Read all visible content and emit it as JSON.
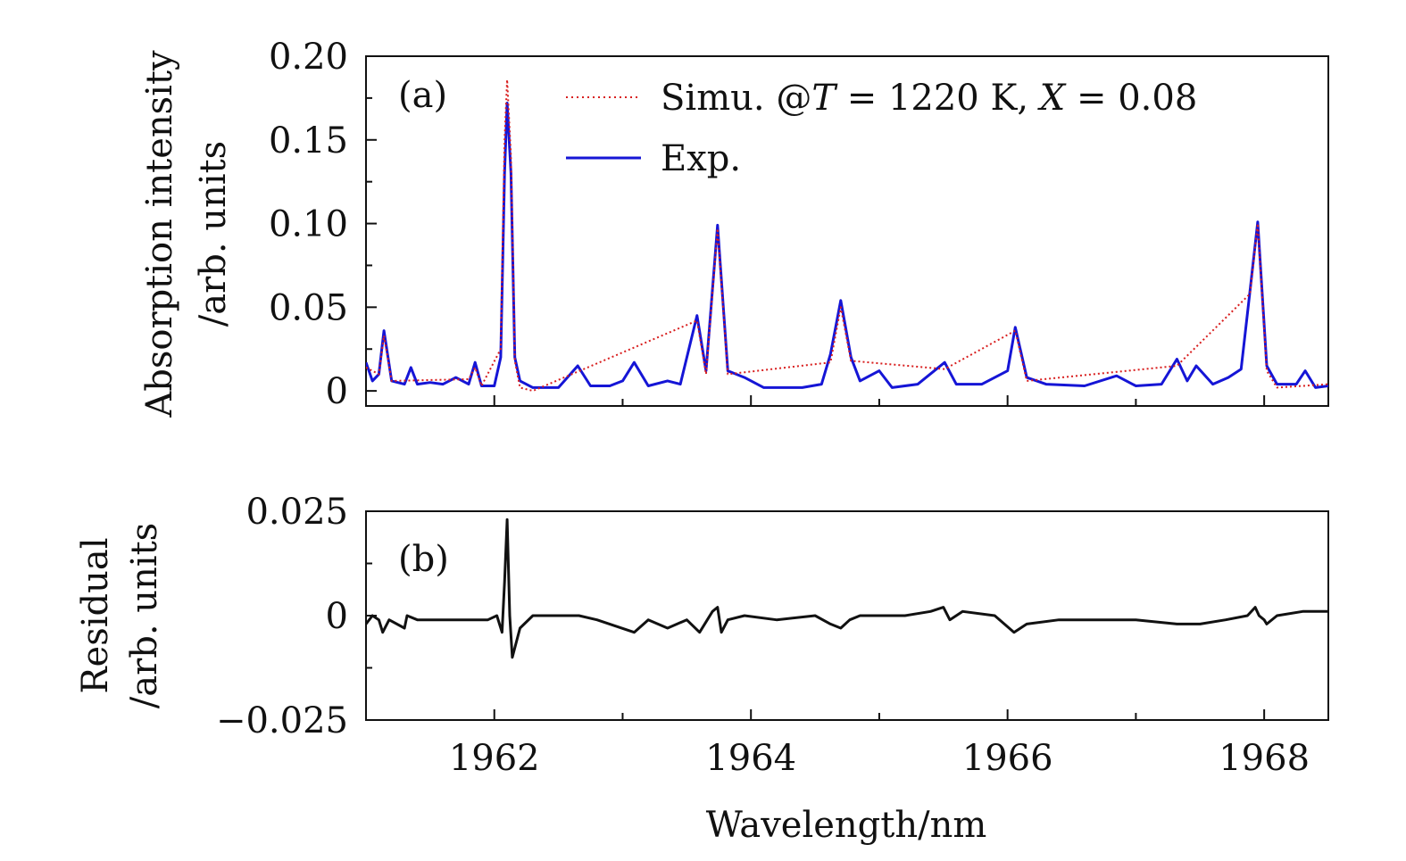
{
  "chart_data": [
    {
      "type": "line",
      "panel_label": "(a)",
      "ylabel_line1": "Absorption intensity",
      "ylabel_line2": "/arb. units",
      "xlim": [
        1961.0,
        1968.5
      ],
      "ylim": [
        -0.009,
        0.2
      ],
      "yticks": [
        0,
        0.05,
        0.1,
        0.15,
        0.2
      ],
      "ytick_labels": [
        "0",
        "0.05",
        "0.10",
        "0.15",
        "0.20"
      ],
      "legend_position": "top-right",
      "legend": {
        "simu_label": "Simu. @",
        "simu_T_var": "T",
        "simu_T_val": " = 1220 K, ",
        "simu_X_var": "X",
        "simu_X_val": " = 0.08",
        "exp_label": "Exp."
      },
      "series": [
        {
          "name": "Exp.",
          "color": "#1515d6",
          "style": "solid",
          "x": [
            1961.0,
            1961.05,
            1961.1,
            1961.14,
            1961.2,
            1961.3,
            1961.35,
            1961.4,
            1961.5,
            1961.6,
            1961.7,
            1961.8,
            1961.85,
            1961.9,
            1962.0,
            1962.05,
            1962.08,
            1962.1,
            1962.13,
            1962.16,
            1962.2,
            1962.3,
            1962.5,
            1962.65,
            1962.75,
            1962.9,
            1963.0,
            1963.09,
            1963.2,
            1963.35,
            1963.45,
            1963.58,
            1963.65,
            1963.74,
            1963.82,
            1963.95,
            1964.1,
            1964.4,
            1964.55,
            1964.62,
            1964.7,
            1964.78,
            1964.85,
            1965.0,
            1965.1,
            1965.3,
            1965.51,
            1965.6,
            1965.8,
            1966.0,
            1966.06,
            1966.15,
            1966.3,
            1966.6,
            1966.85,
            1967.0,
            1967.2,
            1967.32,
            1967.4,
            1967.47,
            1967.6,
            1967.72,
            1967.82,
            1967.89,
            1967.95,
            1968.02,
            1968.1,
            1968.25,
            1968.32,
            1968.4,
            1968.5
          ],
          "y": [
            0.017,
            0.006,
            0.01,
            0.036,
            0.006,
            0.004,
            0.014,
            0.004,
            0.005,
            0.004,
            0.008,
            0.004,
            0.017,
            0.003,
            0.003,
            0.02,
            0.13,
            0.172,
            0.13,
            0.02,
            0.006,
            0.002,
            0.002,
            0.015,
            0.003,
            0.003,
            0.006,
            0.017,
            0.003,
            0.006,
            0.004,
            0.045,
            0.012,
            0.099,
            0.012,
            0.008,
            0.002,
            0.002,
            0.004,
            0.022,
            0.054,
            0.02,
            0.006,
            0.012,
            0.002,
            0.004,
            0.017,
            0.004,
            0.004,
            0.012,
            0.038,
            0.008,
            0.004,
            0.003,
            0.009,
            0.003,
            0.004,
            0.019,
            0.006,
            0.015,
            0.004,
            0.008,
            0.013,
            0.06,
            0.101,
            0.015,
            0.004,
            0.004,
            0.012,
            0.002,
            0.003
          ]
        },
        {
          "name": "Simu.",
          "color": "#d81e1e",
          "style": "dotted",
          "x": [
            1961.0,
            1961.1,
            1961.14,
            1961.2,
            1961.8,
            1961.85,
            1961.9,
            1962.05,
            1962.08,
            1962.1,
            1962.13,
            1962.16,
            1962.2,
            1962.3,
            1963.58,
            1963.65,
            1963.74,
            1963.82,
            1964.62,
            1964.7,
            1964.78,
            1965.51,
            1966.06,
            1966.15,
            1967.32,
            1967.89,
            1967.95,
            1968.02,
            1968.1,
            1968.5
          ],
          "y": [
            0.014,
            0.01,
            0.033,
            0.006,
            0.007,
            0.014,
            0.003,
            0.025,
            0.15,
            0.186,
            0.14,
            0.018,
            0.002,
            0.0,
            0.042,
            0.01,
            0.097,
            0.01,
            0.017,
            0.05,
            0.018,
            0.013,
            0.036,
            0.006,
            0.015,
            0.058,
            0.1,
            0.012,
            0.002,
            0.004
          ]
        }
      ]
    },
    {
      "type": "line",
      "panel_label": "(b)",
      "ylabel_line1": "Residual",
      "ylabel_line2": "/arb. units",
      "xlabel": "Wavelength/nm",
      "xlim": [
        1961.0,
        1968.5
      ],
      "ylim": [
        -0.025,
        0.025
      ],
      "yticks": [
        -0.025,
        0,
        0.025
      ],
      "ytick_labels": [
        "−0.025",
        "0",
        "0.025"
      ],
      "xticks": [
        1962,
        1964,
        1966,
        1968
      ],
      "xtick_labels": [
        "1962",
        "1964",
        "1966",
        "1968"
      ],
      "series": [
        {
          "name": "Residual",
          "color": "#111111",
          "style": "solid",
          "x": [
            1961.0,
            1961.05,
            1961.1,
            1961.13,
            1961.18,
            1961.3,
            1961.32,
            1961.4,
            1961.6,
            1961.8,
            1961.95,
            1962.02,
            1962.06,
            1962.08,
            1962.1,
            1962.12,
            1962.14,
            1962.2,
            1962.3,
            1962.5,
            1962.66,
            1962.8,
            1963.09,
            1963.2,
            1963.35,
            1963.5,
            1963.6,
            1963.7,
            1963.74,
            1963.77,
            1963.82,
            1963.95,
            1964.2,
            1964.5,
            1964.62,
            1964.7,
            1964.77,
            1964.85,
            1965.0,
            1965.2,
            1965.4,
            1965.5,
            1965.55,
            1965.65,
            1965.9,
            1966.05,
            1966.15,
            1966.4,
            1966.8,
            1967.0,
            1967.32,
            1967.5,
            1967.7,
            1967.87,
            1967.93,
            1967.96,
            1968.0,
            1968.02,
            1968.1,
            1968.3,
            1968.35,
            1968.5
          ],
          "y": [
            -0.002,
            0.0,
            -0.001,
            -0.004,
            -0.001,
            -0.003,
            0.0,
            -0.001,
            -0.001,
            -0.001,
            -0.001,
            0.0,
            -0.004,
            0.008,
            0.023,
            0.0,
            -0.01,
            -0.003,
            0.0,
            0.0,
            0.0,
            -0.001,
            -0.004,
            -0.001,
            -0.003,
            -0.001,
            -0.004,
            0.001,
            0.002,
            -0.004,
            -0.001,
            0.0,
            -0.001,
            0.0,
            -0.002,
            -0.003,
            -0.001,
            0.0,
            0.0,
            0.0,
            0.001,
            0.002,
            -0.001,
            0.001,
            0.0,
            -0.004,
            -0.002,
            -0.001,
            -0.001,
            -0.001,
            -0.002,
            -0.002,
            -0.001,
            0.0,
            0.002,
            0.0,
            -0.001,
            -0.002,
            0.0,
            0.001,
            0.001,
            0.001
          ]
        }
      ]
    }
  ]
}
